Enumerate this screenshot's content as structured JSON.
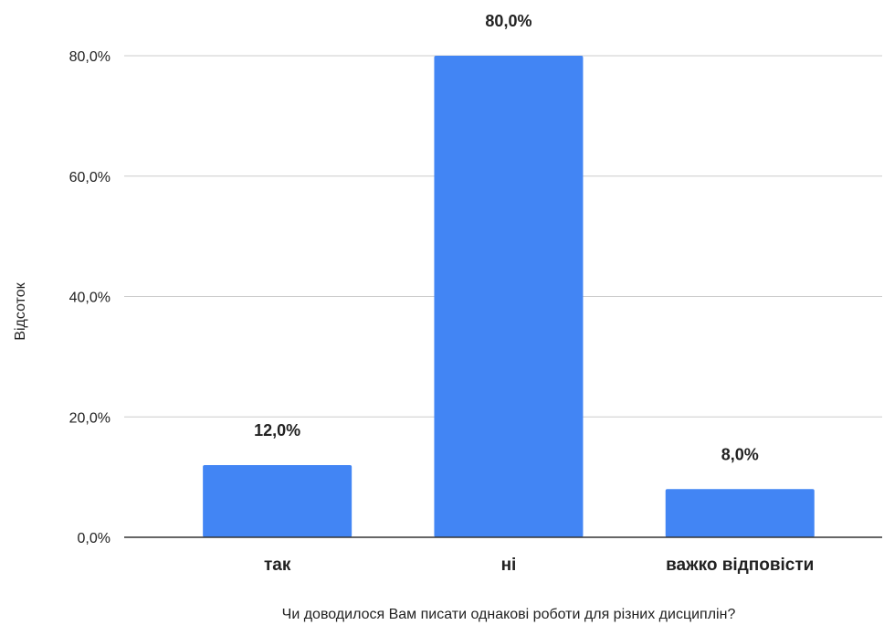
{
  "chart_data": {
    "type": "bar",
    "title": "",
    "xlabel": "Чи доводилося Вам писати однакові роботи для різних дисциплін?",
    "ylabel": "Відсоток",
    "categories": [
      "так",
      "ні",
      "важко відповісти"
    ],
    "values": [
      12.0,
      80.0,
      8.0
    ],
    "data_labels": [
      "12,0%",
      "80,0%",
      "8,0%"
    ],
    "ylim": [
      0,
      80
    ],
    "yticks": [
      0,
      20,
      40,
      60,
      80
    ],
    "ytick_labels": [
      "0,0%",
      "20,0%",
      "40,0%",
      "60,0%",
      "80,0%"
    ],
    "grid": true,
    "legend": "none",
    "bar_color": "#4285F4",
    "grid_color": "#CCCCCC",
    "axis_color": "#333333"
  }
}
